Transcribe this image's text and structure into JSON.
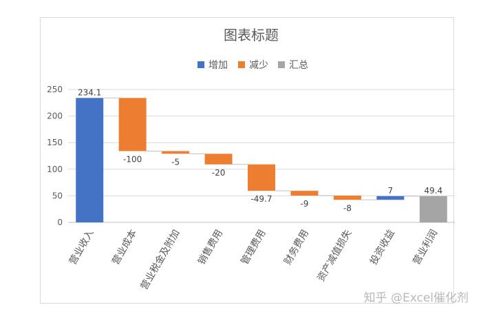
{
  "chart_data": {
    "type": "bar",
    "subtype": "waterfall",
    "title": "图表标题",
    "xlabel": "",
    "ylabel": "",
    "ylim": [
      0,
      250
    ],
    "yticks": [
      0,
      50,
      100,
      150,
      200,
      250
    ],
    "grid": true,
    "legend_position": "top",
    "legend": [
      {
        "key": "increase",
        "label": "增加",
        "color": "#4472C4"
      },
      {
        "key": "decrease",
        "label": "减少",
        "color": "#ED7D31"
      },
      {
        "key": "total",
        "label": "汇总",
        "color": "#A5A5A5"
      }
    ],
    "categories": [
      "营业收入",
      "营业成本",
      "营业税金及附加",
      "销售费用",
      "管理费用",
      "财务费用",
      "资产减值损失",
      "投资收益",
      "营业利润"
    ],
    "values": [
      234.1,
      -100,
      -5,
      -20,
      -49.7,
      -9,
      -8,
      7,
      49.4
    ],
    "value_labels": [
      "234.1",
      "-100",
      "-5",
      "-20",
      "-49.7",
      "-9",
      "-8",
      "7",
      "49.4"
    ],
    "kinds": [
      "increase",
      "decrease",
      "decrease",
      "decrease",
      "decrease",
      "decrease",
      "decrease",
      "increase",
      "total"
    ]
  },
  "watermark": "知乎 @Excel催化剂"
}
